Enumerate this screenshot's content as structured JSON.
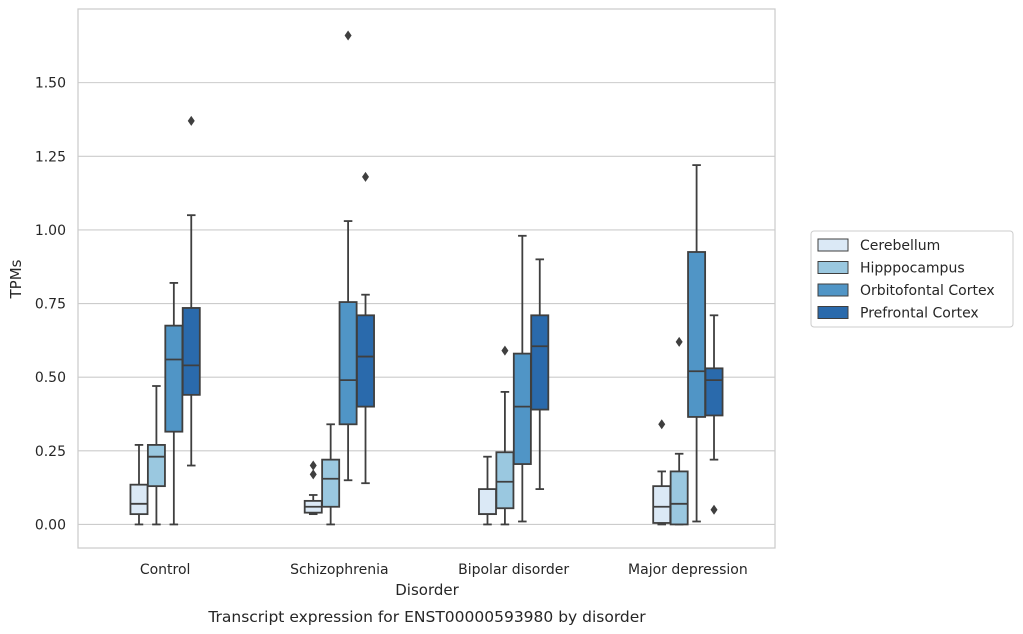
{
  "chart_data": {
    "type": "box",
    "caption": "Transcript expression for ENST00000593980 by disorder",
    "xlabel": "Disorder",
    "ylabel": "TPMs",
    "ylim": [
      -0.08,
      1.75
    ],
    "yticks": [
      0.0,
      0.25,
      0.5,
      0.75,
      1.0,
      1.25,
      1.5
    ],
    "ytick_labels": [
      "0.00",
      "0.25",
      "0.50",
      "0.75",
      "1.00",
      "1.25",
      "1.50"
    ],
    "grid": true,
    "legend_position": "right",
    "categories": [
      "Control",
      "Schizophrenia",
      "Bipolar disorder",
      "Major depression"
    ],
    "series": [
      {
        "name": "Cerebellum",
        "color": "#dbe9f6",
        "boxes": [
          {
            "whislo": 0.0,
            "q1": 0.035,
            "med": 0.07,
            "q3": 0.135,
            "whishi": 0.27,
            "fliers": []
          },
          {
            "whislo": 0.035,
            "q1": 0.04,
            "med": 0.06,
            "q3": 0.08,
            "whishi": 0.1,
            "fliers": [
              0.17,
              0.2
            ]
          },
          {
            "whislo": 0.0,
            "q1": 0.035,
            "med": 0.035,
            "q3": 0.12,
            "whishi": 0.23,
            "fliers": []
          },
          {
            "whislo": 0.0,
            "q1": 0.005,
            "med": 0.06,
            "q3": 0.13,
            "whishi": 0.18,
            "fliers": [
              0.34
            ]
          }
        ]
      },
      {
        "name": "Hipppocampus",
        "color": "#9ac8e0",
        "boxes": [
          {
            "whislo": 0.0,
            "q1": 0.13,
            "med": 0.23,
            "q3": 0.27,
            "whishi": 0.47,
            "fliers": []
          },
          {
            "whislo": 0.0,
            "q1": 0.06,
            "med": 0.155,
            "q3": 0.22,
            "whishi": 0.34,
            "fliers": []
          },
          {
            "whislo": 0.0,
            "q1": 0.055,
            "med": 0.145,
            "q3": 0.245,
            "whishi": 0.45,
            "fliers": [
              0.59
            ]
          },
          {
            "whislo": 0.0,
            "q1": 0.0,
            "med": 0.07,
            "q3": 0.18,
            "whishi": 0.24,
            "fliers": [
              0.62
            ]
          }
        ]
      },
      {
        "name": "Orbitofontal Cortex",
        "color": "#5095c6",
        "boxes": [
          {
            "whislo": 0.0,
            "q1": 0.315,
            "med": 0.56,
            "q3": 0.675,
            "whishi": 0.82,
            "fliers": []
          },
          {
            "whislo": 0.15,
            "q1": 0.34,
            "med": 0.49,
            "q3": 0.755,
            "whishi": 1.03,
            "fliers": [
              1.66
            ]
          },
          {
            "whislo": 0.01,
            "q1": 0.205,
            "med": 0.4,
            "q3": 0.58,
            "whishi": 0.98,
            "fliers": []
          },
          {
            "whislo": 0.01,
            "q1": 0.365,
            "med": 0.52,
            "q3": 0.925,
            "whishi": 1.22,
            "fliers": []
          }
        ]
      },
      {
        "name": "Prefrontal Cortex",
        "color": "#2a6aac",
        "boxes": [
          {
            "whislo": 0.2,
            "q1": 0.44,
            "med": 0.54,
            "q3": 0.735,
            "whishi": 1.05,
            "fliers": [
              1.37
            ]
          },
          {
            "whislo": 0.14,
            "q1": 0.4,
            "med": 0.57,
            "q3": 0.71,
            "whishi": 0.78,
            "fliers": [
              1.18
            ]
          },
          {
            "whislo": 0.12,
            "q1": 0.39,
            "med": 0.605,
            "q3": 0.71,
            "whishi": 0.9,
            "fliers": []
          },
          {
            "whislo": 0.22,
            "q1": 0.37,
            "med": 0.49,
            "q3": 0.53,
            "whishi": 0.71,
            "fliers": [
              0.05
            ]
          }
        ]
      }
    ]
  }
}
